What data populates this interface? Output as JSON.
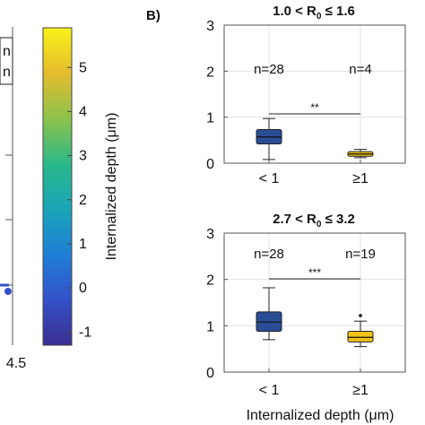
{
  "panel_b_label": "B)",
  "left_fragment": {
    "legend_lines": [
      "n",
      "n"
    ],
    "x_tick_label": "4.5"
  },
  "colorbar": {
    "label": "Internalized depth (μm)",
    "ticks": [
      "-1",
      "0",
      "1",
      "2",
      "3",
      "4",
      "5"
    ],
    "colors": [
      "#3a2e8f",
      "#3451c8",
      "#1f7fd6",
      "#1aa5b8",
      "#2ab98a",
      "#8cc24a",
      "#e5bc2e",
      "#f9f21a"
    ]
  },
  "chart_data": [
    {
      "type": "box",
      "title_parts": {
        "pre": "1.0 < R",
        "sub": "0",
        "post": " ≤ 1.6"
      },
      "categories": [
        "< 1",
        "≥1"
      ],
      "ylim": [
        0,
        3
      ],
      "yticks": [
        "0",
        "1",
        "2",
        "3"
      ],
      "grid": true,
      "n_labels": [
        "n=28",
        "n=4"
      ],
      "significance": "**",
      "colors": [
        "#2a4d96",
        "#f2c21b"
      ],
      "boxes": [
        {
          "min": 0.08,
          "q1": 0.42,
          "median": 0.57,
          "q3": 0.73,
          "max": 0.97,
          "outliers": []
        },
        {
          "min": 0.12,
          "q1": 0.15,
          "median": 0.2,
          "q3": 0.25,
          "max": 0.3,
          "outliers": []
        }
      ]
    },
    {
      "type": "box",
      "title_parts": {
        "pre": "2.7 < R",
        "sub": "0",
        "post": " ≤ 3.2"
      },
      "categories": [
        "< 1",
        "≥1"
      ],
      "ylim": [
        0,
        3
      ],
      "yticks": [
        "0",
        "1",
        "2",
        "3"
      ],
      "grid": true,
      "n_labels": [
        "n=28",
        "n=19"
      ],
      "significance": "***",
      "colors": [
        "#2a4d96",
        "#f2c21b"
      ],
      "xlabel": "Internalized depth (μm)",
      "boxes": [
        {
          "min": 0.7,
          "q1": 0.88,
          "median": 1.08,
          "q3": 1.3,
          "max": 1.82,
          "outliers": []
        },
        {
          "min": 0.55,
          "q1": 0.65,
          "median": 0.75,
          "q3": 0.88,
          "max": 1.1,
          "outliers": [
            1.22
          ]
        }
      ]
    }
  ]
}
